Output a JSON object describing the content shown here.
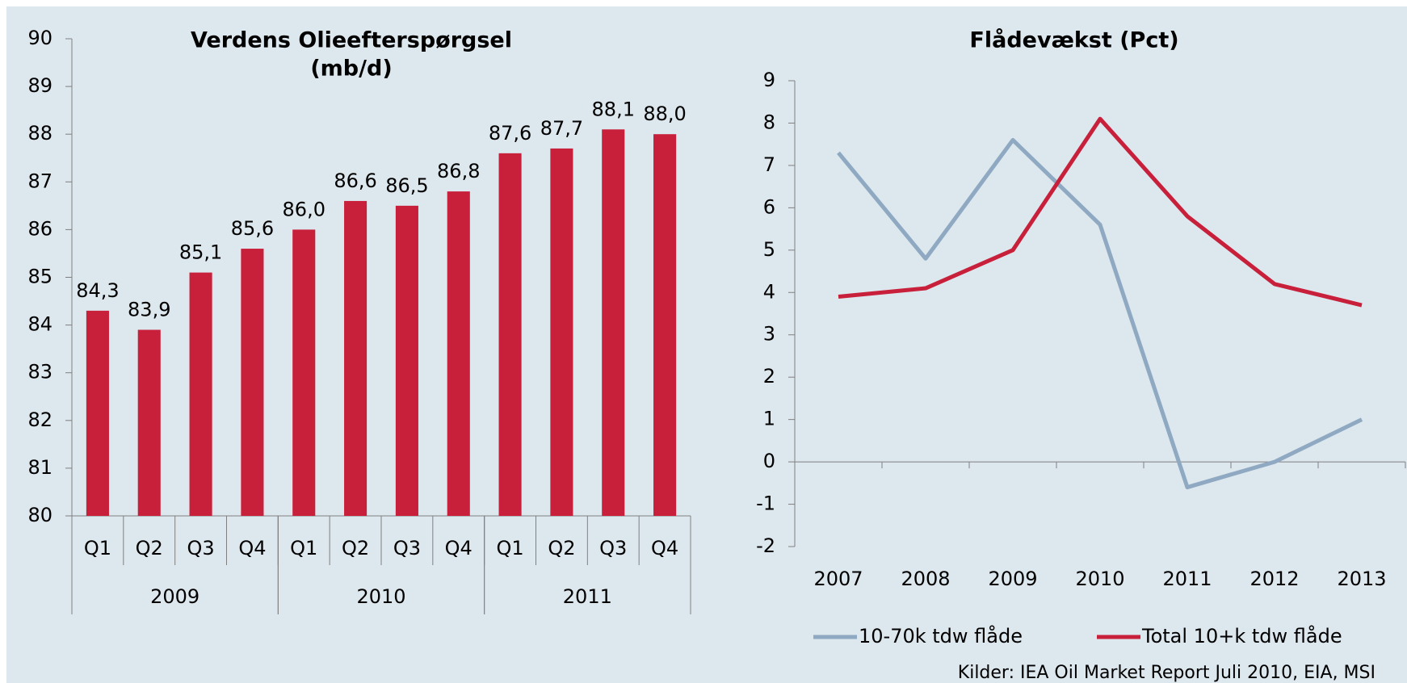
{
  "chart_data": [
    {
      "type": "bar",
      "title": [
        "Verdens Olieefterspørgsel",
        "(mb/d)"
      ],
      "categories": [
        "Q1",
        "Q2",
        "Q3",
        "Q4",
        "Q1",
        "Q2",
        "Q3",
        "Q4",
        "Q1",
        "Q2",
        "Q3",
        "Q4"
      ],
      "group_labels": [
        "2009",
        "2010",
        "2011"
      ],
      "values": [
        84.3,
        83.9,
        85.1,
        85.6,
        86.0,
        86.6,
        86.5,
        86.8,
        87.6,
        87.7,
        88.1,
        88.0
      ],
      "value_labels": [
        "84,3",
        "83,9",
        "85,1",
        "85,6",
        "86,0",
        "86,6",
        "86,5",
        "86,8",
        "87,6",
        "87,7",
        "88,1",
        "88,0"
      ],
      "color": "#c8203a",
      "ylim": [
        80,
        90
      ],
      "yticks": [
        80,
        81,
        82,
        83,
        84,
        85,
        86,
        87,
        88,
        89,
        90
      ]
    },
    {
      "type": "line",
      "title": "Flådevækst (Pct)",
      "categories": [
        "2007",
        "2008",
        "2009",
        "2010",
        "2011",
        "2012",
        "2013"
      ],
      "series": [
        {
          "name": "10-70k tdw flåde",
          "color": "#8ea9c1",
          "values": [
            7.3,
            4.8,
            7.6,
            5.6,
            -0.6,
            0,
            1.0
          ]
        },
        {
          "name": "Total 10+k tdw flåde",
          "color": "#c8203a",
          "values": [
            3.9,
            4.1,
            5.0,
            8.1,
            5.8,
            4.2,
            3.7
          ]
        }
      ],
      "ylim": [
        -2,
        9
      ],
      "yticks": [
        -2,
        -1,
        0,
        1,
        2,
        3,
        4,
        5,
        6,
        7,
        8,
        9
      ],
      "legend": "bottom"
    }
  ],
  "source": "Kilder: IEA Oil Market Report Juli 2010, EIA, MSI"
}
